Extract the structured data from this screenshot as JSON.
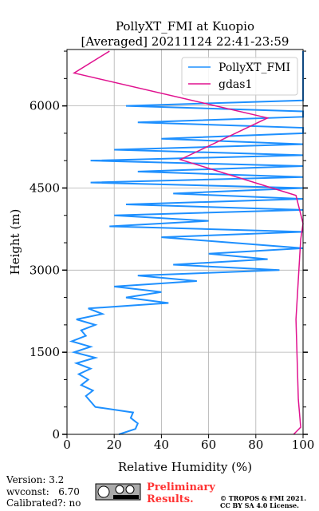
{
  "chart_data": {
    "type": "line",
    "title": [
      "PollyXT_FMI at Kuopio",
      "[Averaged] 20211124 22:41-23:59"
    ],
    "x_label": "Relative Humidity (%)",
    "y_label": "Height (m)",
    "xlim": [
      0,
      100
    ],
    "xticks": [
      0,
      20,
      40,
      60,
      80,
      100
    ],
    "ylim": [
      0,
      7030
    ],
    "yticks": [
      0,
      1500,
      3000,
      4500,
      6000
    ],
    "yminor_ticks": [
      500,
      1000,
      2000,
      2500,
      3500,
      4000,
      5000,
      5500,
      6500,
      7000
    ],
    "grid": true,
    "legend": "upper right",
    "series": [
      {
        "name": "PollyXT_FMI",
        "color": "#1e90ff",
        "x": [
          22,
          29,
          30,
          27,
          28,
          12,
          10,
          8,
          11,
          6,
          9,
          5,
          10,
          4,
          12,
          3,
          10,
          2,
          8,
          6,
          12,
          4,
          15,
          9,
          43,
          25,
          40,
          20,
          55,
          30,
          90,
          45,
          85,
          60,
          100,
          70,
          40,
          100,
          18,
          60,
          20,
          100,
          25,
          100,
          45,
          100,
          10,
          100,
          30,
          100,
          10,
          100,
          20,
          100,
          40,
          100,
          100,
          30,
          100,
          100,
          25,
          100,
          100,
          100,
          100,
          100,
          100,
          100,
          100,
          100,
          100
        ],
        "y": [
          0,
          100,
          200,
          300,
          400,
          500,
          600,
          700,
          800,
          900,
          1000,
          1100,
          1200,
          1300,
          1400,
          1500,
          1600,
          1700,
          1800,
          1900,
          2000,
          2100,
          2200,
          2300,
          2400,
          2500,
          2600,
          2700,
          2800,
          2900,
          3000,
          3100,
          3200,
          3300,
          3400,
          3500,
          3600,
          3700,
          3800,
          3900,
          4000,
          4100,
          4200,
          4300,
          4400,
          4500,
          4600,
          4700,
          4800,
          4900,
          5000,
          5100,
          5200,
          5300,
          5400,
          5500,
          5600,
          5700,
          5800,
          5900,
          6000,
          6100,
          6200,
          6300,
          6400,
          6500,
          6600,
          6700,
          6800,
          6900,
          7000
        ]
      },
      {
        "name": "gdas1",
        "color": "#e0128f",
        "x": [
          96,
          99,
          98,
          97,
          99,
          100,
          97,
          48,
          85,
          3,
          18
        ],
        "y": [
          0,
          130,
          640,
          2100,
          3560,
          3850,
          4365,
          5020,
          5780,
          6600,
          7000
        ]
      }
    ],
    "footer": {
      "version": "Version: 3.2",
      "wvconst": "wvconst:   6.70",
      "calibrated": "Calibrated?: no",
      "preliminary": [
        "Preliminary",
        "Results."
      ],
      "copyright": [
        "© TROPOS & FMI 2021.",
        "CC BY SA 4.0 License."
      ]
    }
  }
}
